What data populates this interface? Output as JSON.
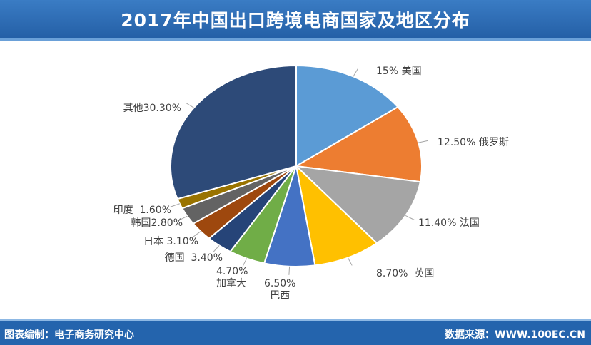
{
  "chart_data": {
    "type": "pie",
    "title": "2017年中国出口跨境电商国家及地区分布",
    "slices": [
      {
        "name": "美国",
        "value": 15,
        "label": "15%",
        "color": "#5b9bd5"
      },
      {
        "name": "俄罗斯",
        "value": 12.5,
        "label": "12.50%",
        "color": "#ed7d31"
      },
      {
        "name": "法国",
        "value": 11.4,
        "label": "11.40%",
        "color": "#a5a5a5"
      },
      {
        "name": "英国",
        "value": 8.7,
        "label": "8.70%",
        "color": "#ffc000"
      },
      {
        "name": "巴西",
        "value": 6.5,
        "label": "6.50%",
        "color": "#4472c4"
      },
      {
        "name": "加拿大",
        "value": 4.7,
        "label": "4.70%",
        "color": "#70ad47"
      },
      {
        "name": "德国",
        "value": 3.4,
        "label": "3.40%",
        "color": "#264478"
      },
      {
        "name": "日本",
        "value": 3.1,
        "label": "3.10%",
        "color": "#9e480e"
      },
      {
        "name": "韩国",
        "value": 2.8,
        "label": "2.80%",
        "color": "#636363"
      },
      {
        "name": "印度",
        "value": 1.6,
        "label": "1.60%",
        "color": "#997300"
      },
      {
        "name": "其他",
        "value": 30.3,
        "label": "30.30%",
        "color": "#2d4a78"
      }
    ]
  },
  "footer": {
    "left": "图表编制：电子商务研究中心",
    "right": "数据来源：WWW.100EC.CN"
  }
}
